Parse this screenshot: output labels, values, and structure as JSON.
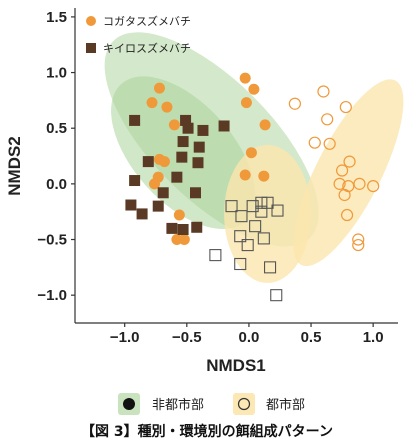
{
  "chart_data": {
    "type": "scatter",
    "xlabel": "NMDS1",
    "ylabel": "NMDS2",
    "xlim": [
      -1.4,
      1.2
    ],
    "ylim": [
      -1.25,
      1.58
    ],
    "xticks": [
      -1.0,
      -0.5,
      0.0,
      0.5,
      1.0
    ],
    "yticks": [
      1.5,
      1.0,
      0.5,
      0.0,
      -0.5,
      -1.0
    ],
    "xtick_labels": [
      "−1.0",
      "−0.5",
      "0.0",
      "0.5",
      "1.0"
    ],
    "ytick_labels": [
      "1.5",
      "1.0",
      "0.5",
      "0.0",
      "−0.5",
      "−1.0"
    ],
    "grid": false,
    "species_legend": {
      "placement": "top-left",
      "entries": [
        {
          "label": "コガタスズメバチ",
          "marker": "circle",
          "color": "#F0993A"
        },
        {
          "label": "キイロスズメバチ",
          "marker": "square",
          "color": "#5A3A24"
        }
      ]
    },
    "environment_legend": {
      "placement": "bottom",
      "entries": [
        {
          "label": "非都市部",
          "fill": "#C9E3BE",
          "filled_marker": true
        },
        {
          "label": "都市部",
          "fill": "#FBE8B5",
          "filled_marker": false
        }
      ]
    },
    "colors": {
      "kogata": "#F0993A",
      "kiiro": "#5A3A24",
      "nonurban_ellipse": "#C5E0BA",
      "nonurban_ellipse_inner": "#A9D49A",
      "urban_ellipse": "#FBE6AE",
      "axis": "#333333"
    },
    "ellipses": [
      {
        "group": "nonurban-kogata",
        "center": [
          -0.3,
          0.4
        ],
        "radii": [
          0.48,
          1.25
        ],
        "angle_deg": -45
      },
      {
        "group": "nonurban-kiiro",
        "center": [
          -0.53,
          0.28
        ],
        "radii": [
          0.4,
          0.83
        ],
        "angle_deg": -42
      },
      {
        "group": "urban-kogata",
        "center": [
          0.15,
          -0.27
        ],
        "radii": [
          0.35,
          0.62
        ],
        "angle_deg": 0
      },
      {
        "group": "urban-kiiro",
        "center": [
          0.8,
          0.1
        ],
        "radii": [
          0.26,
          0.93
        ],
        "angle_deg": 27
      }
    ],
    "series": [
      {
        "species": "kogata",
        "environment": "nonurban",
        "points": [
          [
            -0.72,
            0.86
          ],
          [
            -0.78,
            0.73
          ],
          [
            -0.66,
            0.69
          ],
          [
            -0.6,
            0.53
          ],
          [
            -0.72,
            0.22
          ],
          [
            -0.68,
            0.2
          ],
          [
            -0.73,
            0.06
          ],
          [
            -0.76,
            0.0
          ],
          [
            -0.56,
            -0.28
          ],
          [
            -0.52,
            -0.5
          ],
          [
            -0.58,
            -0.5
          ],
          [
            -0.03,
            0.95
          ],
          [
            0.04,
            0.85
          ],
          [
            -0.02,
            0.73
          ],
          [
            0.13,
            0.53
          ],
          [
            0.02,
            0.28
          ],
          [
            0.12,
            0.07
          ],
          [
            -0.03,
            0.08
          ]
        ]
      },
      {
        "species": "kiiro",
        "environment": "nonurban",
        "points": [
          [
            -0.92,
            0.57
          ],
          [
            -0.51,
            0.57
          ],
          [
            -0.49,
            0.5
          ],
          [
            -0.37,
            0.48
          ],
          [
            -0.53,
            0.38
          ],
          [
            -0.54,
            0.24
          ],
          [
            -0.81,
            0.2
          ],
          [
            -0.4,
            0.33
          ],
          [
            -0.41,
            0.19
          ],
          [
            -0.2,
            0.52
          ],
          [
            -0.92,
            0.03
          ],
          [
            -0.58,
            0.06
          ],
          [
            -0.69,
            -0.08
          ],
          [
            -0.43,
            -0.08
          ],
          [
            -0.95,
            -0.19
          ],
          [
            -0.73,
            -0.2
          ],
          [
            -0.86,
            -0.27
          ],
          [
            -0.62,
            -0.4
          ],
          [
            -0.53,
            -0.41
          ],
          [
            -0.42,
            -0.39
          ]
        ]
      },
      {
        "species": "kogata",
        "environment": "urban",
        "points": [
          [
            0.37,
            0.72
          ],
          [
            0.6,
            0.83
          ],
          [
            0.63,
            0.58
          ],
          [
            0.78,
            0.69
          ],
          [
            0.53,
            0.37
          ],
          [
            0.65,
            0.36
          ],
          [
            0.81,
            0.2
          ],
          [
            0.75,
            0.12
          ],
          [
            0.73,
            0.0
          ],
          [
            0.8,
            -0.02
          ],
          [
            0.77,
            -0.1
          ],
          [
            0.89,
            0.0
          ],
          [
            1.0,
            -0.02
          ],
          [
            0.79,
            -0.28
          ],
          [
            0.88,
            -0.5
          ],
          [
            0.88,
            -0.55
          ]
        ]
      },
      {
        "species": "kiiro",
        "environment": "urban",
        "points": [
          [
            -0.14,
            -0.2
          ],
          [
            0.1,
            -0.17
          ],
          [
            0.15,
            -0.17
          ],
          [
            0.03,
            -0.2
          ],
          [
            0.1,
            -0.25
          ],
          [
            -0.06,
            -0.29
          ],
          [
            0.23,
            -0.24
          ],
          [
            0.05,
            -0.38
          ],
          [
            -0.07,
            -0.47
          ],
          [
            -0.01,
            -0.55
          ],
          [
            0.12,
            -0.49
          ],
          [
            -0.27,
            -0.64
          ],
          [
            -0.07,
            -0.72
          ],
          [
            0.17,
            -0.75
          ],
          [
            0.22,
            -1.0
          ]
        ]
      }
    ]
  },
  "legend_bottom": {
    "nonurban_label": "非都市部",
    "urban_label": "都市部"
  },
  "caption": "【図 3】種別・環境別の餌組成パターン"
}
